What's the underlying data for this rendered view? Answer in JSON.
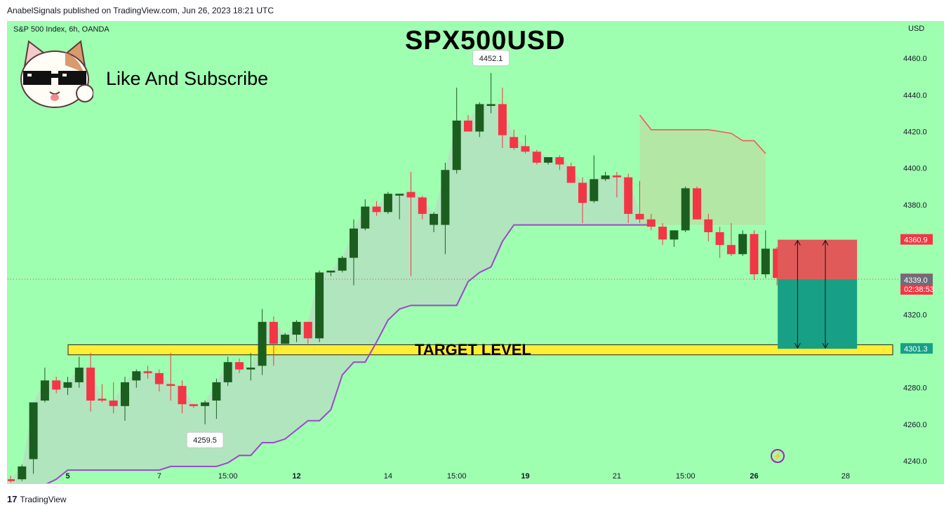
{
  "header": {
    "published_by": "AnabelSignals published on TradingView.com, Jun 26, 2023 18:21 UTC"
  },
  "footer": {
    "brand": "TradingView",
    "logo_glyph": "17"
  },
  "chart_header": {
    "symbol_info": "S&P 500 Index, 6h, OANDA",
    "title": "SPX500USD",
    "subscribe_text": "Like And Subscribe",
    "currency": "USD",
    "target_label": "TARGET LEVEL"
  },
  "colors": {
    "background": "#9fffb1",
    "bull": "#1b5e20",
    "bear": "#f23645",
    "trail": "#9c47c8",
    "target_zone": "#ffee33",
    "stop_zone": "#e15a5a",
    "profit_zone": "#17a085"
  },
  "chart_data": {
    "type": "candlestick",
    "title": "SPX500USD",
    "symbol": "S&P 500 Index, 6h, OANDA",
    "ylim": [
      4227,
      4480
    ],
    "y_ticks": [
      4240.0,
      4260.0,
      4280.0,
      4300.0,
      4320.0,
      4340.0,
      4360.0,
      4380.0,
      4400.0,
      4420.0,
      4440.0,
      4460.0
    ],
    "y_tick_labels": [
      "4240.0",
      "4260.0",
      "4280.0",
      "",
      "4320.0",
      "",
      "",
      "4380.0",
      "4400.0",
      "4420.0",
      "4440.0",
      "4460.0"
    ],
    "x_labels": [
      {
        "label": "5",
        "index": 5,
        "bold": true
      },
      {
        "label": "7",
        "index": 13,
        "bold": false
      },
      {
        "label": "15:00",
        "index": 19,
        "bold": false
      },
      {
        "label": "12",
        "index": 25,
        "bold": true
      },
      {
        "label": "14",
        "index": 33,
        "bold": false
      },
      {
        "label": "15:00",
        "index": 39,
        "bold": false
      },
      {
        "label": "19",
        "index": 45,
        "bold": true
      },
      {
        "label": "21",
        "index": 53,
        "bold": false
      },
      {
        "label": "15:00",
        "index": 59,
        "bold": false
      },
      {
        "label": "26",
        "index": 65,
        "bold": true
      },
      {
        "label": "28",
        "index": 73,
        "bold": false
      }
    ],
    "candles": [
      {
        "o": 4230,
        "h": 4232,
        "l": 4228,
        "c": 4229
      },
      {
        "o": 4230,
        "h": 4238,
        "l": 4229,
        "c": 4237
      },
      {
        "o": 4241,
        "h": 4272,
        "l": 4233,
        "c": 4272
      },
      {
        "o": 4273,
        "h": 4291,
        "l": 4272,
        "c": 4284
      },
      {
        "o": 4284,
        "h": 4286,
        "l": 4277,
        "c": 4279
      },
      {
        "o": 4280,
        "h": 4286,
        "l": 4276,
        "c": 4283
      },
      {
        "o": 4283,
        "h": 4297,
        "l": 4280,
        "c": 4291
      },
      {
        "o": 4291,
        "h": 4299,
        "l": 4267,
        "c": 4273
      },
      {
        "o": 4274,
        "h": 4282,
        "l": 4272,
        "c": 4273
      },
      {
        "o": 4273,
        "h": 4283,
        "l": 4266,
        "c": 4270
      },
      {
        "o": 4270,
        "h": 4286,
        "l": 4262,
        "c": 4283
      },
      {
        "o": 4284,
        "h": 4290,
        "l": 4280,
        "c": 4289
      },
      {
        "o": 4289,
        "h": 4292,
        "l": 4285,
        "c": 4288
      },
      {
        "o": 4288,
        "h": 4290,
        "l": 4278,
        "c": 4282
      },
      {
        "o": 4282,
        "h": 4299,
        "l": 4273,
        "c": 4281
      },
      {
        "o": 4281,
        "h": 4284,
        "l": 4266,
        "c": 4271
      },
      {
        "o": 4271,
        "h": 4271,
        "l": 4269,
        "c": 4270
      },
      {
        "o": 4270,
        "h": 4273,
        "l": 4260,
        "c": 4272
      },
      {
        "o": 4273,
        "h": 4285,
        "l": 4263,
        "c": 4283
      },
      {
        "o": 4283,
        "h": 4297,
        "l": 4281,
        "c": 4294
      },
      {
        "o": 4294,
        "h": 4296,
        "l": 4288,
        "c": 4290
      },
      {
        "o": 4290,
        "h": 4299,
        "l": 4284,
        "c": 4291
      },
      {
        "o": 4292,
        "h": 4323,
        "l": 4287,
        "c": 4316
      },
      {
        "o": 4316,
        "h": 4319,
        "l": 4292,
        "c": 4304
      },
      {
        "o": 4304,
        "h": 4310,
        "l": 4304,
        "c": 4309
      },
      {
        "o": 4309,
        "h": 4317,
        "l": 4305,
        "c": 4316
      },
      {
        "o": 4316,
        "h": 4316,
        "l": 4304,
        "c": 4307
      },
      {
        "o": 4307,
        "h": 4344,
        "l": 4305,
        "c": 4343
      },
      {
        "o": 4343,
        "h": 4344,
        "l": 4341,
        "c": 4344
      },
      {
        "o": 4344,
        "h": 4352,
        "l": 4343,
        "c": 4351
      },
      {
        "o": 4351,
        "h": 4372,
        "l": 4336,
        "c": 4367
      },
      {
        "o": 4367,
        "h": 4383,
        "l": 4366,
        "c": 4379
      },
      {
        "o": 4379,
        "h": 4382,
        "l": 4374,
        "c": 4376
      },
      {
        "o": 4376,
        "h": 4387,
        "l": 4375,
        "c": 4386
      },
      {
        "o": 4385,
        "h": 4386,
        "l": 4372,
        "c": 4386
      },
      {
        "o": 4387,
        "h": 4398,
        "l": 4341,
        "c": 4384
      },
      {
        "o": 4384,
        "h": 4385,
        "l": 4372,
        "c": 4375
      },
      {
        "o": 4369,
        "h": 4376,
        "l": 4365,
        "c": 4375
      },
      {
        "o": 4369,
        "h": 4403,
        "l": 4353,
        "c": 4399
      },
      {
        "o": 4399,
        "h": 4444,
        "l": 4397,
        "c": 4426
      },
      {
        "o": 4426,
        "h": 4429,
        "l": 4420,
        "c": 4420
      },
      {
        "o": 4420,
        "h": 4436,
        "l": 4417,
        "c": 4435
      },
      {
        "o": 4434,
        "h": 4452,
        "l": 4430,
        "c": 4435
      },
      {
        "o": 4435,
        "h": 4444,
        "l": 4411,
        "c": 4418
      },
      {
        "o": 4417,
        "h": 4421,
        "l": 4410,
        "c": 4411
      },
      {
        "o": 4412,
        "h": 4418,
        "l": 4408,
        "c": 4409
      },
      {
        "o": 4409,
        "h": 4410,
        "l": 4402,
        "c": 4403
      },
      {
        "o": 4403,
        "h": 4406,
        "l": 4402,
        "c": 4406
      },
      {
        "o": 4406,
        "h": 4407,
        "l": 4399,
        "c": 4402
      },
      {
        "o": 4401,
        "h": 4403,
        "l": 4392,
        "c": 4392
      },
      {
        "o": 4392,
        "h": 4395,
        "l": 4370,
        "c": 4381
      },
      {
        "o": 4382,
        "h": 4407,
        "l": 4381,
        "c": 4394
      },
      {
        "o": 4394,
        "h": 4398,
        "l": 4393,
        "c": 4396
      },
      {
        "o": 4396,
        "h": 4398,
        "l": 4384,
        "c": 4395
      },
      {
        "o": 4395,
        "h": 4397,
        "l": 4370,
        "c": 4375
      },
      {
        "o": 4375,
        "h": 4393,
        "l": 4370,
        "c": 4372
      },
      {
        "o": 4372,
        "h": 4375,
        "l": 4366,
        "c": 4368
      },
      {
        "o": 4368,
        "h": 4370,
        "l": 4358,
        "c": 4361
      },
      {
        "o": 4361,
        "h": 4366,
        "l": 4357,
        "c": 4366
      },
      {
        "o": 4366,
        "h": 4390,
        "l": 4365,
        "c": 4389
      },
      {
        "o": 4389,
        "h": 4390,
        "l": 4372,
        "c": 4372
      },
      {
        "o": 4372,
        "h": 4375,
        "l": 4360,
        "c": 4365
      },
      {
        "o": 4365,
        "h": 4368,
        "l": 4351,
        "c": 4358
      },
      {
        "o": 4358,
        "h": 4370,
        "l": 4352,
        "c": 4353
      },
      {
        "o": 4353,
        "h": 4366,
        "l": 4352,
        "c": 4364
      },
      {
        "o": 4364,
        "h": 4366,
        "l": 4339,
        "c": 4342
      },
      {
        "o": 4342,
        "h": 4366,
        "l": 4340,
        "c": 4356
      },
      {
        "o": 4356,
        "h": 4357,
        "l": 4336,
        "c": 4340
      }
    ],
    "trail_line": [
      4227,
      4227,
      4227,
      4227,
      4230,
      4235,
      4235,
      4235,
      4235,
      4235,
      4235,
      4235,
      4235,
      4235,
      4237,
      4237,
      4237,
      4237,
      4237,
      4239,
      4243,
      4243,
      4250,
      4250,
      4252,
      4257,
      4262,
      4262,
      4268,
      4287,
      4294,
      4294,
      4305,
      4317,
      4323,
      4325,
      4325,
      4325,
      4325,
      4325,
      4338,
      4343,
      4346,
      4360,
      4369,
      4369,
      4369,
      4369,
      4369,
      4369,
      4369,
      4369,
      4369,
      4369,
      4369,
      4369,
      4369
    ],
    "price_labels": [
      {
        "value": 4452.1,
        "label": "4452.1",
        "position": "above"
      },
      {
        "value": 4259.5,
        "label": "4259.5",
        "position": "below"
      }
    ],
    "axis_markers": [
      {
        "value": 4360.9,
        "label": "4360.9",
        "color": "#f23645"
      },
      {
        "value": 4339.3,
        "label": "4339.3",
        "sub_label": "02:38:53",
        "color": "#f23645"
      },
      {
        "value": 4339.0,
        "label": "4339.0",
        "color": "#6b6e7a"
      },
      {
        "value": 4301.3,
        "label": "4301.3",
        "color": "#17a085"
      }
    ],
    "current_price": 4339.3,
    "target_level": {
      "label": "TARGET LEVEL",
      "low": 4298,
      "high": 4303.5
    },
    "channel": {
      "start_index": 55,
      "end_index": 66,
      "upper": [
        4429,
        4421,
        4421,
        4421,
        4421,
        4421,
        4421,
        4420,
        4419,
        4415,
        4415,
        4408
      ],
      "lower": 4369
    },
    "trade": {
      "entry": 4339.3,
      "stop": 4360.9,
      "target": 4301.3,
      "start_index": 67,
      "end_index": 74
    }
  }
}
